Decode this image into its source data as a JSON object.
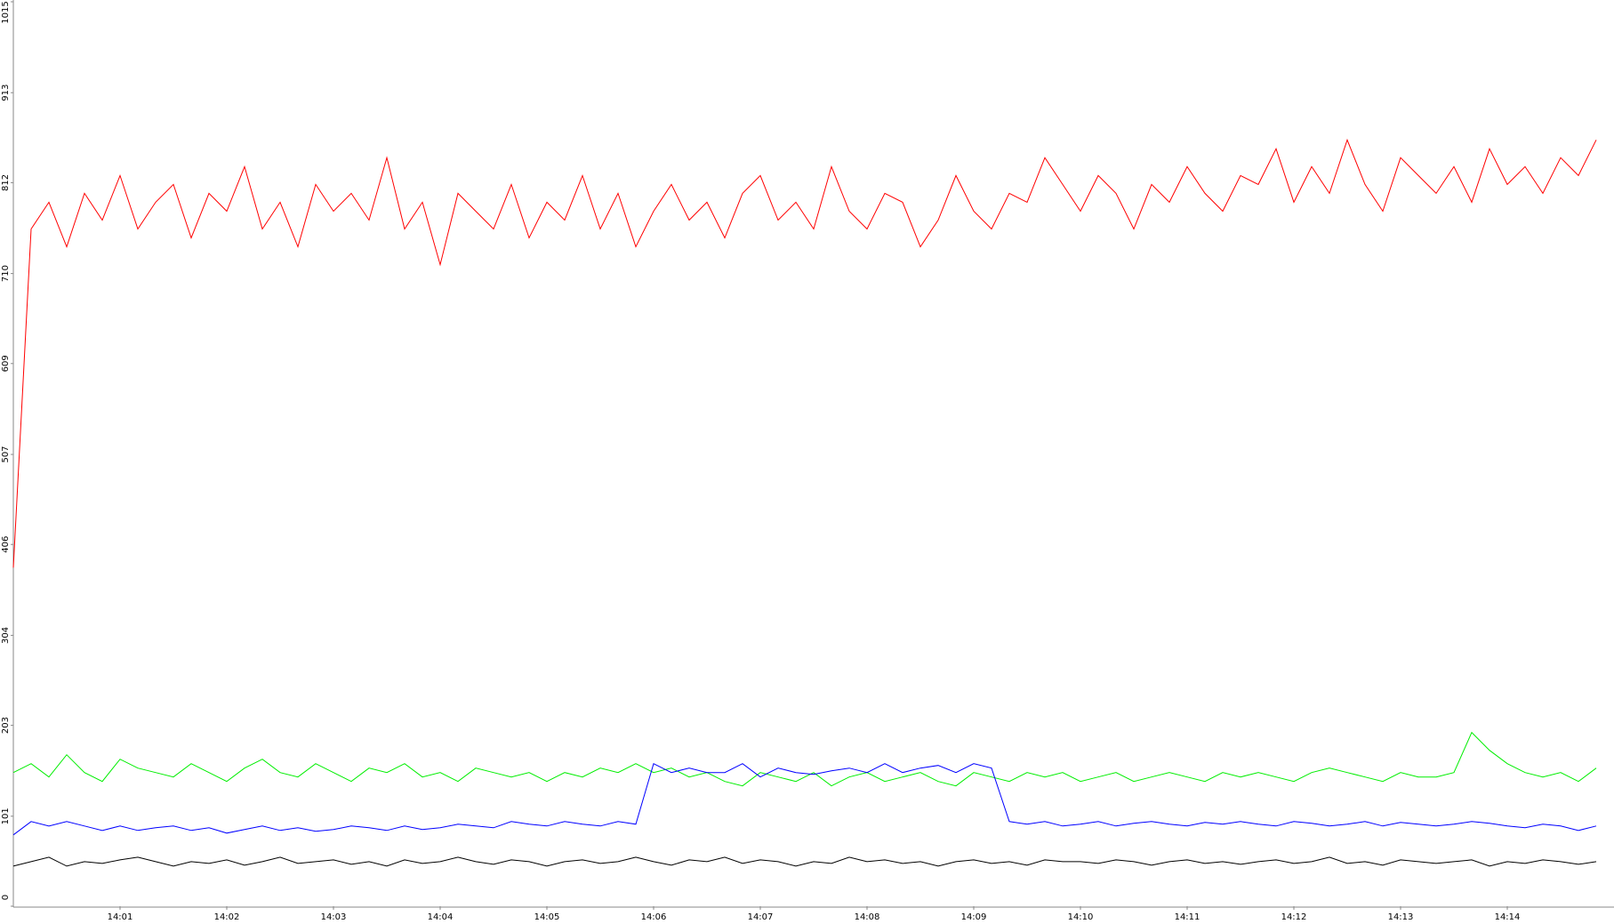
{
  "chart_data": {
    "type": "line",
    "categories": [
      null,
      null,
      null,
      null,
      null,
      null,
      "14:01",
      null,
      null,
      null,
      null,
      null,
      "14:02",
      null,
      null,
      null,
      null,
      null,
      "14:03",
      null,
      null,
      null,
      null,
      null,
      "14:04",
      null,
      null,
      null,
      null,
      null,
      "14:05",
      null,
      null,
      null,
      null,
      null,
      "14:06",
      null,
      null,
      null,
      null,
      null,
      "14:07",
      null,
      null,
      null,
      null,
      null,
      "14:08",
      null,
      null,
      null,
      null,
      null,
      "14:09",
      null,
      null,
      null,
      null,
      null,
      "14:10",
      null,
      null,
      null,
      null,
      null,
      "14:11",
      null,
      null,
      null,
      null,
      null,
      "14:12",
      null,
      null,
      null,
      null,
      null,
      "14:13",
      null,
      null,
      null,
      null,
      null,
      "14:14",
      null,
      null,
      null,
      null,
      null
    ],
    "series": [
      {
        "color": "#ff0000",
        "values": [
          380,
          760,
          790,
          740,
          800,
          770,
          820,
          760,
          790,
          810,
          750,
          800,
          780,
          830,
          760,
          790,
          740,
          810,
          780,
          800,
          770,
          840,
          760,
          790,
          720,
          800,
          780,
          760,
          810,
          750,
          790,
          770,
          820,
          760,
          800,
          740,
          780,
          810,
          770,
          790,
          750,
          800,
          820,
          770,
          790,
          760,
          830,
          780,
          760,
          800,
          790,
          740,
          770,
          820,
          780,
          760,
          800,
          790,
          840,
          810,
          780,
          820,
          800,
          760,
          810,
          790,
          830,
          800,
          780,
          820,
          810,
          850,
          790,
          830,
          800,
          860,
          810,
          780,
          840,
          820,
          800,
          830,
          790,
          850,
          810,
          830,
          800,
          840,
          820,
          860
        ]
      },
      {
        "color": "#00ee00",
        "values": [
          150,
          160,
          145,
          170,
          150,
          140,
          165,
          155,
          150,
          145,
          160,
          150,
          140,
          155,
          165,
          150,
          145,
          160,
          150,
          140,
          155,
          150,
          160,
          145,
          150,
          140,
          155,
          150,
          145,
          150,
          140,
          150,
          145,
          155,
          150,
          160,
          150,
          155,
          145,
          150,
          140,
          135,
          150,
          145,
          140,
          150,
          135,
          145,
          150,
          140,
          145,
          150,
          140,
          135,
          150,
          145,
          140,
          150,
          145,
          150,
          140,
          145,
          150,
          140,
          145,
          150,
          145,
          140,
          150,
          145,
          150,
          145,
          140,
          150,
          155,
          150,
          145,
          140,
          150,
          145,
          145,
          150,
          195,
          175,
          160,
          150,
          145,
          150,
          140,
          155
        ]
      },
      {
        "color": "#0000ff",
        "values": [
          80,
          95,
          90,
          95,
          90,
          85,
          90,
          85,
          88,
          90,
          85,
          88,
          82,
          86,
          90,
          85,
          88,
          84,
          86,
          90,
          88,
          85,
          90,
          86,
          88,
          92,
          90,
          88,
          95,
          92,
          90,
          95,
          92,
          90,
          95,
          92,
          160,
          150,
          155,
          150,
          150,
          160,
          145,
          155,
          150,
          148,
          152,
          155,
          150,
          160,
          150,
          155,
          158,
          150,
          160,
          155,
          95,
          92,
          95,
          90,
          92,
          95,
          90,
          93,
          95,
          92,
          90,
          94,
          92,
          95,
          92,
          90,
          95,
          93,
          90,
          92,
          95,
          90,
          94,
          92,
          90,
          92,
          95,
          93,
          90,
          88,
          92,
          90,
          85,
          90
        ]
      },
      {
        "color": "#000000",
        "values": [
          45,
          50,
          55,
          45,
          50,
          48,
          52,
          55,
          50,
          45,
          50,
          48,
          52,
          46,
          50,
          55,
          48,
          50,
          52,
          47,
          50,
          45,
          52,
          48,
          50,
          55,
          50,
          47,
          52,
          50,
          45,
          50,
          52,
          48,
          50,
          55,
          50,
          46,
          52,
          50,
          55,
          48,
          52,
          50,
          45,
          50,
          48,
          55,
          50,
          52,
          48,
          50,
          45,
          50,
          52,
          48,
          50,
          46,
          52,
          50,
          50,
          48,
          52,
          50,
          46,
          50,
          52,
          48,
          50,
          47,
          50,
          52,
          48,
          50,
          55,
          48,
          50,
          46,
          52,
          50,
          48,
          50,
          52,
          45,
          50,
          48,
          52,
          50,
          47,
          50
        ]
      }
    ],
    "ylim": [
      0,
      1015
    ],
    "yticks": [
      0,
      101,
      203,
      304,
      406,
      507,
      609,
      710,
      812,
      913,
      1015
    ]
  }
}
